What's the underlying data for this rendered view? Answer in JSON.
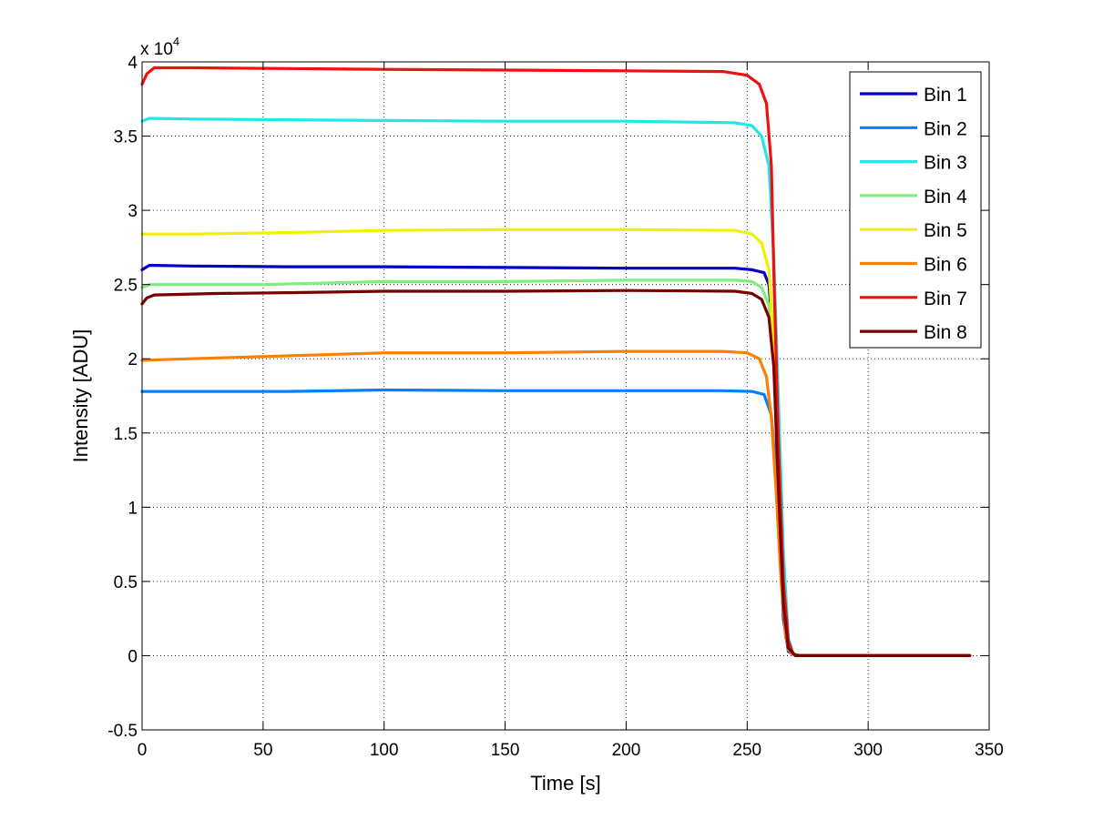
{
  "chart_data": {
    "type": "line",
    "xlabel": "Time [s]",
    "ylabel": "Intensity [ADU]",
    "y_exponent_label": "x 10",
    "y_exponent": "4",
    "xlim": [
      0,
      350
    ],
    "ylim": [
      -0.5,
      4
    ],
    "x_ticks": [
      0,
      50,
      100,
      150,
      200,
      250,
      300,
      350
    ],
    "y_ticks": [
      -0.5,
      0,
      0.5,
      1,
      1.5,
      2,
      2.5,
      3,
      3.5,
      4
    ],
    "x_tick_labels": [
      "0",
      "50",
      "100",
      "150",
      "200",
      "250",
      "300",
      "350"
    ],
    "y_tick_labels": [
      "-0.5",
      "0",
      "0.5",
      "1",
      "1.5",
      "2",
      "2.5",
      "3",
      "3.5",
      "4"
    ],
    "grid": true,
    "legend_position": "top-right",
    "series": [
      {
        "name": "Bin 1",
        "color": "#0000c8",
        "points": [
          [
            0,
            2.6
          ],
          [
            3,
            2.63
          ],
          [
            20,
            2.625
          ],
          [
            60,
            2.62
          ],
          [
            100,
            2.62
          ],
          [
            150,
            2.615
          ],
          [
            200,
            2.61
          ],
          [
            245,
            2.61
          ],
          [
            252,
            2.6
          ],
          [
            257,
            2.58
          ],
          [
            259,
            2.5
          ],
          [
            261,
            2.1
          ],
          [
            263,
            1.0
          ],
          [
            265,
            0.25
          ],
          [
            267,
            0.03
          ],
          [
            270,
            0.0
          ],
          [
            342,
            0.0
          ]
        ]
      },
      {
        "name": "Bin 2",
        "color": "#0080ff",
        "points": [
          [
            0,
            1.78
          ],
          [
            20,
            1.78
          ],
          [
            60,
            1.78
          ],
          [
            100,
            1.79
          ],
          [
            150,
            1.785
          ],
          [
            200,
            1.785
          ],
          [
            240,
            1.785
          ],
          [
            252,
            1.78
          ],
          [
            257,
            1.76
          ],
          [
            260,
            1.62
          ],
          [
            262,
            1.2
          ],
          [
            264,
            0.55
          ],
          [
            266,
            0.12
          ],
          [
            268,
            0.02
          ],
          [
            270,
            0.0
          ],
          [
            342,
            0.0
          ]
        ]
      },
      {
        "name": "Bin 3",
        "color": "#20e8e8",
        "points": [
          [
            0,
            3.6
          ],
          [
            3,
            3.62
          ],
          [
            20,
            3.615
          ],
          [
            60,
            3.61
          ],
          [
            100,
            3.605
          ],
          [
            150,
            3.6
          ],
          [
            200,
            3.6
          ],
          [
            245,
            3.59
          ],
          [
            252,
            3.57
          ],
          [
            256,
            3.5
          ],
          [
            259,
            3.3
          ],
          [
            261,
            2.7
          ],
          [
            263,
            1.7
          ],
          [
            265,
            0.7
          ],
          [
            267,
            0.12
          ],
          [
            269,
            0.01
          ],
          [
            272,
            0.0
          ],
          [
            342,
            0.0
          ]
        ]
      },
      {
        "name": "Bin 4",
        "color": "#7cf07c",
        "points": [
          [
            0,
            2.48
          ],
          [
            3,
            2.5
          ],
          [
            50,
            2.5
          ],
          [
            100,
            2.52
          ],
          [
            150,
            2.52
          ],
          [
            200,
            2.53
          ],
          [
            245,
            2.53
          ],
          [
            252,
            2.52
          ],
          [
            256,
            2.48
          ],
          [
            259,
            2.36
          ],
          [
            261,
            2.0
          ],
          [
            263,
            1.1
          ],
          [
            265,
            0.3
          ],
          [
            267,
            0.04
          ],
          [
            270,
            0.0
          ],
          [
            342,
            0.0
          ]
        ]
      },
      {
        "name": "Bin 5",
        "color": "#f0f000",
        "points": [
          [
            0,
            2.84
          ],
          [
            20,
            2.84
          ],
          [
            60,
            2.85
          ],
          [
            100,
            2.865
          ],
          [
            150,
            2.87
          ],
          [
            200,
            2.87
          ],
          [
            245,
            2.865
          ],
          [
            252,
            2.84
          ],
          [
            256,
            2.78
          ],
          [
            259,
            2.6
          ],
          [
            261,
            2.1
          ],
          [
            263,
            1.2
          ],
          [
            265,
            0.4
          ],
          [
            267,
            0.06
          ],
          [
            270,
            0.0
          ],
          [
            342,
            0.0
          ]
        ]
      },
      {
        "name": "Bin 6",
        "color": "#ff8000",
        "points": [
          [
            0,
            1.99
          ],
          [
            20,
            2.0
          ],
          [
            60,
            2.02
          ],
          [
            100,
            2.04
          ],
          [
            150,
            2.04
          ],
          [
            200,
            2.05
          ],
          [
            240,
            2.05
          ],
          [
            250,
            2.04
          ],
          [
            255,
            2.0
          ],
          [
            258,
            1.88
          ],
          [
            260,
            1.6
          ],
          [
            262,
            1.1
          ],
          [
            264,
            0.5
          ],
          [
            266,
            0.12
          ],
          [
            268,
            0.02
          ],
          [
            270,
            0.0
          ],
          [
            342,
            0.0
          ]
        ]
      },
      {
        "name": "Bin 7",
        "color": "#f01010",
        "points": [
          [
            0,
            3.85
          ],
          [
            2,
            3.92
          ],
          [
            5,
            3.96
          ],
          [
            20,
            3.96
          ],
          [
            60,
            3.955
          ],
          [
            100,
            3.95
          ],
          [
            150,
            3.945
          ],
          [
            200,
            3.94
          ],
          [
            240,
            3.935
          ],
          [
            250,
            3.91
          ],
          [
            255,
            3.85
          ],
          [
            258,
            3.72
          ],
          [
            260,
            3.3
          ],
          [
            261,
            2.6
          ],
          [
            263,
            1.4
          ],
          [
            265,
            0.5
          ],
          [
            267,
            0.1
          ],
          [
            269,
            0.01
          ],
          [
            272,
            0.0
          ],
          [
            342,
            0.0
          ]
        ]
      },
      {
        "name": "Bin 8",
        "color": "#780000",
        "points": [
          [
            0,
            2.37
          ],
          [
            2,
            2.41
          ],
          [
            5,
            2.43
          ],
          [
            30,
            2.44
          ],
          [
            60,
            2.445
          ],
          [
            100,
            2.455
          ],
          [
            150,
            2.455
          ],
          [
            200,
            2.46
          ],
          [
            245,
            2.455
          ],
          [
            252,
            2.44
          ],
          [
            256,
            2.4
          ],
          [
            259,
            2.28
          ],
          [
            261,
            1.95
          ],
          [
            263,
            1.1
          ],
          [
            265,
            0.35
          ],
          [
            267,
            0.05
          ],
          [
            270,
            0.0
          ],
          [
            342,
            0.0
          ]
        ]
      }
    ]
  }
}
